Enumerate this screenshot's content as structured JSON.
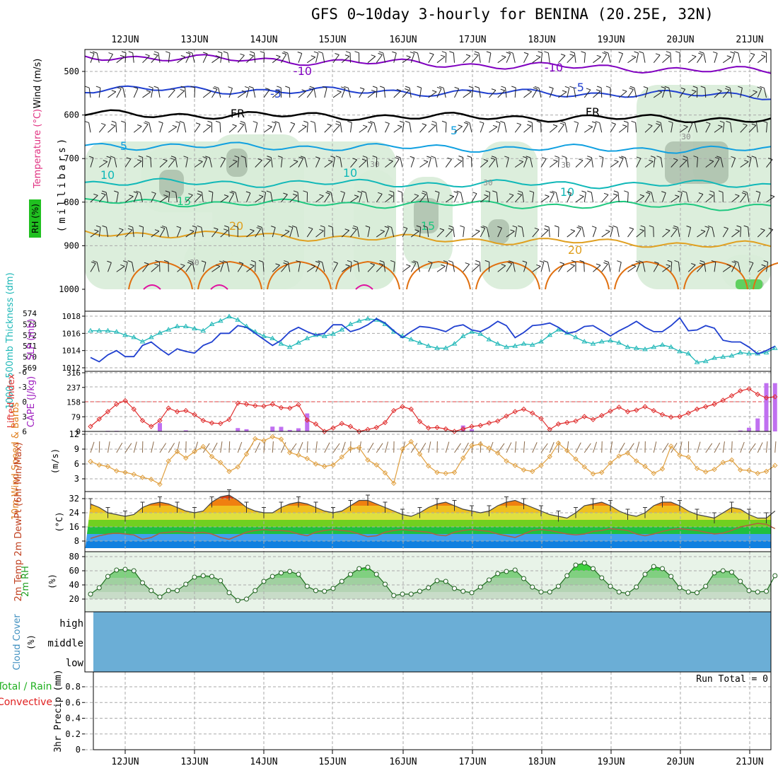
{
  "title": "GFS 0~10day 3-hourly for BENINA (20.25E, 32N)",
  "dates": [
    "12JUN",
    "13JUN",
    "14JUN",
    "15JUN",
    "16JUN",
    "17JUN",
    "18JUN",
    "19JUN",
    "20JUN",
    "21JUN"
  ],
  "colors": {
    "purple": "#8000c0",
    "blue": "#2040d0",
    "cyan": "#10a0e0",
    "teal": "#10b8b8",
    "green": "#20c880",
    "orange": "#e0a020",
    "darkorange": "#e07010",
    "magenta": "#e010a0",
    "rh_fill": "#d8ecd8",
    "rh_dark": "#8ca08c",
    "cloud": "#6baed6",
    "precip_green": "#00c000",
    "precip_red": "#e02020"
  },
  "chart_data": [
    {
      "id": "upper_air",
      "type": "line",
      "title": "",
      "ylabel": "(millibars)",
      "side_labels": [
        "Wind (m/s)",
        "Temperature (°C)",
        "RH (%)"
      ],
      "y_ticks": [
        500,
        600,
        700,
        800,
        900,
        1000
      ],
      "isotherms": [
        {
          "name": "-10",
          "pressure": [
            465,
            500
          ]
        },
        {
          "name": "-5",
          "pressure": [
            540,
            555
          ]
        },
        {
          "name": "FR",
          "pressure": [
            598,
            610
          ]
        },
        {
          "name": "5",
          "pressure": [
            670,
            680
          ]
        },
        {
          "name": "10",
          "pressure": [
            755,
            760
          ]
        },
        {
          "name": "15",
          "pressure": [
            800,
            810
          ]
        },
        {
          "name": "20",
          "pressure": [
            870,
            900
          ]
        }
      ],
      "rh_contour_label": "30"
    },
    {
      "id": "slp_thickness",
      "type": "line",
      "left_label": "1000~500mb Thickness (dm)",
      "right_label": "SLP (mb)",
      "left_ticks": [
        569,
        570,
        571,
        572,
        573,
        574
      ],
      "right_ticks": [
        1012,
        1014,
        1016,
        1018
      ],
      "series": [
        {
          "name": "Thickness",
          "values": [
            572.4,
            572.4,
            572.4,
            572.3,
            572.0,
            571.8,
            571.4,
            571.8,
            572.2,
            572.5,
            572.8,
            572.8,
            572.6,
            572.4,
            573.0,
            573.3,
            573.7,
            573.4,
            572.8,
            572.3,
            571.9,
            571.7,
            571.2,
            570.9,
            571.3,
            571.7,
            572.0,
            571.9,
            572.1,
            572.5,
            573.0,
            573.3,
            573.5,
            573.4,
            573.0,
            572.3,
            571.9,
            571.6,
            571.3,
            571.0,
            570.8,
            570.8,
            571.2,
            571.9,
            572.3,
            572.1,
            571.6,
            571.2,
            570.9,
            571.0,
            571.2,
            571.1,
            571.4,
            572.0,
            572.5,
            572.2,
            571.8,
            571.4,
            571.2,
            571.4,
            571.5,
            571.3,
            570.9,
            570.8,
            570.7,
            570.9,
            571.1,
            570.9,
            570.5,
            570.3,
            569.5,
            569.6,
            569.9,
            570.0,
            570.1,
            570.4,
            570.3,
            570.3,
            570.4,
            570.8
          ]
        },
        {
          "name": "SLP",
          "values": [
            1013.2,
            1012.7,
            1013.5,
            1014.0,
            1013.3,
            1013.3,
            1014.6,
            1015.0,
            1014.2,
            1013.5,
            1014.2,
            1013.9,
            1013.7,
            1014.6,
            1015.0,
            1016.0,
            1016.0,
            1016.9,
            1016.7,
            1016.0,
            1015.3,
            1014.6,
            1015.2,
            1016.2,
            1016.7,
            1016.2,
            1015.8,
            1016.0,
            1017.0,
            1017.0,
            1016.2,
            1016.5,
            1017.0,
            1017.7,
            1017.2,
            1016.3,
            1015.5,
            1016.2,
            1016.8,
            1016.7,
            1016.5,
            1016.2,
            1016.8,
            1017.0,
            1016.4,
            1016.2,
            1016.7,
            1017.4,
            1016.9,
            1015.5,
            1016.1,
            1016.9,
            1017.0,
            1017.2,
            1016.7,
            1016.0,
            1016.2,
            1016.8,
            1016.9,
            1016.3,
            1015.7,
            1016.3,
            1016.8,
            1017.4,
            1016.7,
            1016.2,
            1016.2,
            1016.9,
            1017.8,
            1016.3,
            1016.4,
            1016.9,
            1016.6,
            1015.2,
            1015.0,
            1015.0,
            1014.4,
            1013.6,
            1014.0,
            1014.5
          ]
        }
      ]
    },
    {
      "id": "cape_lifted",
      "type": "bar",
      "left_label": "Lifted Index",
      "right_label": "CAPE (J/kg)",
      "left_ticks": [
        6,
        3,
        0,
        -3,
        -6
      ],
      "right_ticks": [
        0,
        79,
        158,
        237,
        316
      ],
      "series": [
        {
          "name": "Lifted Index",
          "values": [
            5.0,
            3.5,
            2.0,
            0.5,
            -0.2,
            1.5,
            3.8,
            5.0,
            3.8,
            1.3,
            2.0,
            1.8,
            2.6,
            3.8,
            4.3,
            4.4,
            3.6,
            0.3,
            0.5,
            0.8,
            0.9,
            0.5,
            1.2,
            1.3,
            0.6,
            3.7,
            4.5,
            6.0,
            5.3,
            4.4,
            5.0,
            6.0,
            5.6,
            5.2,
            4.2,
            1.8,
            1.0,
            1.5,
            4.0,
            5.3,
            5.2,
            5.5,
            6.0,
            5.5,
            5.0,
            4.8,
            4.3,
            3.9,
            2.9,
            2.0,
            1.5,
            2.3,
            3.4,
            5.6,
            4.5,
            4.2,
            3.9,
            3.0,
            3.6,
            2.8,
            1.9,
            1.1,
            2.0,
            1.7,
            1.0,
            1.8,
            2.6,
            3.1,
            3.0,
            2.3,
            1.5,
            1.0,
            0.5,
            -0.3,
            -1.2,
            -2.2,
            -2.6,
            -1.5,
            -0.8,
            -1.0
          ]
        },
        {
          "name": "CAPE",
          "values": [
            0,
            0,
            3,
            3,
            0,
            0,
            0,
            0,
            45,
            0,
            0,
            6,
            0,
            0,
            0,
            0,
            0,
            18,
            12,
            0,
            0,
            26,
            25,
            8,
            17,
            97,
            0,
            0,
            0,
            0,
            0,
            0,
            0,
            0,
            0,
            0,
            0,
            0,
            0,
            0,
            0,
            0,
            0,
            32,
            12,
            0,
            0,
            0,
            0,
            0,
            0,
            0,
            0,
            0,
            0,
            0,
            0,
            0,
            0,
            0,
            0,
            0,
            0,
            0,
            0,
            0,
            0,
            0,
            0,
            0,
            0,
            0,
            0,
            0,
            0,
            5,
            20,
            70,
            260,
            260
          ]
        }
      ]
    },
    {
      "id": "wind10m",
      "type": "line",
      "left_label": "10m Wind Speed & Barbs",
      "ylabel": "(m/s)",
      "y_ticks": [
        3,
        6,
        9,
        12
      ],
      "series": [
        {
          "name": "10m Wind Speed",
          "values": [
            6.5,
            5.8,
            5.5,
            4.6,
            4.3,
            3.9,
            3.3,
            2.9,
            1.9,
            6.6,
            8.5,
            7.2,
            8.5,
            9.5,
            7.5,
            6.3,
            4.5,
            5.4,
            8.0,
            11.1,
            10.7,
            11.5,
            11.0,
            8.3,
            7.8,
            7.1,
            6.0,
            5.5,
            5.8,
            7.4,
            9.1,
            9.3,
            6.8,
            5.8,
            4.2,
            2.1,
            9.0,
            10.5,
            8.0,
            5.6,
            4.3,
            4.1,
            4.3,
            7.2,
            9.7,
            10.0,
            9.2,
            8.2,
            6.6,
            5.7,
            4.8,
            4.5,
            5.7,
            7.5,
            10.2,
            8.7,
            7.0,
            5.4,
            4.0,
            4.3,
            6.2,
            7.6,
            8.2,
            6.6,
            5.5,
            4.1,
            5.0,
            9.6,
            7.8,
            7.4,
            5.1,
            4.4,
            4.9,
            6.3,
            6.8,
            4.8,
            4.7,
            4.1,
            4.5,
            5.7
          ]
        }
      ]
    },
    {
      "id": "temp2m",
      "type": "area",
      "left_label": "2m Temp 2m DewPt (6hr Min/Max)",
      "ylabel": "(°C)",
      "y_ticks": [
        8,
        16,
        24,
        32
      ],
      "series": [
        {
          "name": "2m Temp",
          "values": [
            29,
            27,
            24,
            23,
            22,
            23,
            27,
            29,
            30,
            29,
            27,
            25,
            24,
            25,
            30,
            33,
            34,
            31,
            27,
            25,
            24,
            24,
            27,
            29,
            30,
            29,
            27,
            25,
            24,
            25,
            28,
            31,
            31,
            29,
            27,
            25,
            23,
            22,
            24,
            27,
            29,
            30,
            28,
            26,
            25,
            24,
            25,
            28,
            30,
            31,
            29,
            27,
            25,
            23,
            22,
            21,
            24,
            28,
            29,
            30,
            28,
            25,
            23,
            22,
            24,
            28,
            30,
            30,
            28,
            25,
            23,
            22,
            21,
            24,
            27,
            26,
            23,
            21,
            21,
            25
          ]
        },
        {
          "name": "2m DewPt",
          "values": [
            9.5,
            11,
            12,
            12.5,
            12,
            11.5,
            9,
            10,
            12.5,
            13,
            13.5,
            13,
            12.5,
            13,
            12,
            10,
            9,
            11,
            13,
            14,
            14.5,
            14,
            14,
            13.5,
            12,
            11,
            13,
            14,
            14.5,
            14,
            13.5,
            12,
            10.5,
            11,
            13,
            14,
            14.5,
            14,
            13.5,
            13,
            11.5,
            11,
            13,
            14,
            14.5,
            14,
            13.5,
            12,
            11,
            10,
            12,
            14,
            14.5,
            14,
            13,
            12,
            11.5,
            12,
            13.5,
            14,
            15,
            14.5,
            14,
            12,
            11,
            12,
            13.5,
            14.5,
            15,
            14.5,
            14,
            13,
            12,
            12.5,
            14,
            16,
            17,
            18,
            17.5,
            15
          ]
        }
      ]
    },
    {
      "id": "rh2m",
      "type": "area",
      "left_label": "2m RH",
      "ylabel": "(%)",
      "y_ticks": [
        20,
        40,
        60,
        80
      ],
      "series": [
        {
          "name": "2m RH",
          "values": [
            27,
            36,
            52,
            61,
            62,
            60,
            43,
            32,
            23,
            32,
            32,
            41,
            51,
            53,
            52,
            46,
            29,
            18,
            20,
            32,
            45,
            52,
            57,
            59,
            55,
            38,
            32,
            31,
            35,
            45,
            55,
            63,
            65,
            55,
            41,
            25,
            27,
            27,
            31,
            36,
            46,
            45,
            35,
            31,
            29,
            37,
            47,
            56,
            59,
            61,
            49,
            37,
            30,
            30,
            38,
            53,
            68,
            71,
            63,
            50,
            38,
            30,
            28,
            37,
            55,
            66,
            63,
            52,
            36,
            30,
            29,
            38,
            57,
            60,
            58,
            45,
            32,
            30,
            31,
            53
          ]
        }
      ]
    },
    {
      "id": "cloud",
      "type": "area",
      "left_label": "Cloud Cover",
      "ylabel": "(%)",
      "levels": [
        "high",
        "middle",
        "low"
      ]
    },
    {
      "id": "precip",
      "type": "bar",
      "left_label": "Total / Rain Convective",
      "ylabel": "3hr Precip (mm)",
      "y_ticks": [
        0,
        0.2,
        0.4,
        0.6,
        0.8
      ],
      "run_total_label": "Run Total = 0",
      "series": [
        {
          "name": "Total / Rain",
          "values": []
        },
        {
          "name": "Convective",
          "values": []
        }
      ]
    }
  ]
}
